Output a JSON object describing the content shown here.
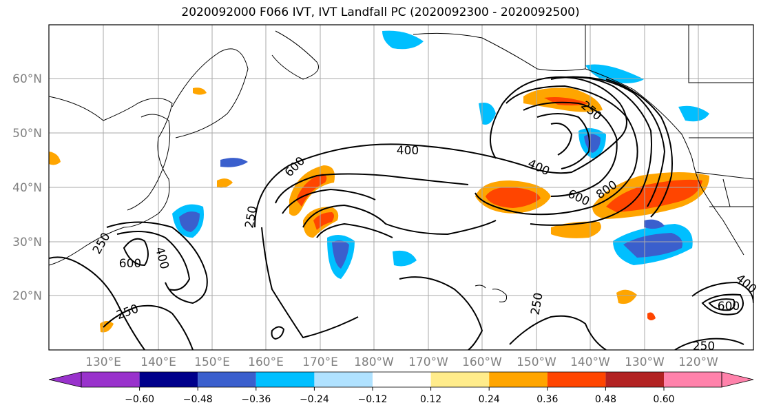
{
  "title": "2020092000 F066 IVT, IVT Landfall PC (2020092300 - 2020092500)",
  "map": {
    "lat_labels": [
      "60°N",
      "50°N",
      "40°N",
      "30°N",
      "20°N"
    ],
    "lon_labels": [
      "130°E",
      "140°E",
      "150°E",
      "160°E",
      "170°E",
      "180°W",
      "170°W",
      "160°W",
      "150°W",
      "140°W",
      "130°W",
      "120°W"
    ],
    "contour_labels": [
      "400",
      "250",
      "600",
      "250",
      "600",
      "400",
      "250",
      "400",
      "600",
      "800",
      "250",
      "600",
      "400",
      "250",
      "250"
    ]
  },
  "colorbar": {
    "ticks": [
      "−0.60",
      "−0.48",
      "−0.36",
      "−0.24",
      "−0.12",
      "0.12",
      "0.24",
      "0.36",
      "0.48",
      "0.60"
    ],
    "colors": [
      "#9932cc",
      "#00008b",
      "#3a5fcd",
      "#00bfff",
      "#b0e2ff",
      "#ffffff",
      "#ffec8b",
      "#ffa500",
      "#ff4500",
      "#b22222",
      "#ff82ab"
    ]
  }
}
